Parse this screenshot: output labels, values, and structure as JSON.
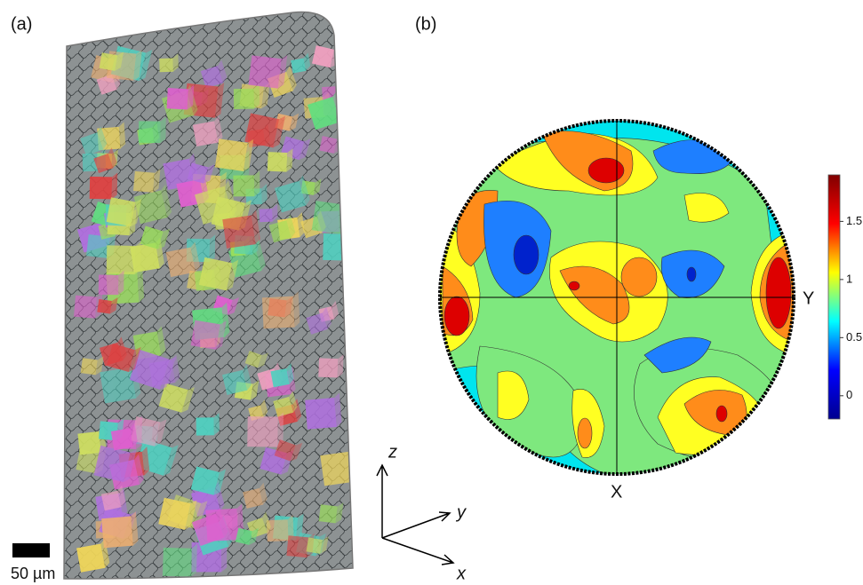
{
  "panel_a": {
    "label": "(a)",
    "scale_bar": "50 µm",
    "axes": {
      "z": "z",
      "y": "y",
      "x": "x"
    }
  },
  "panel_b": {
    "label": "(b)",
    "axis_labels": {
      "x": "X",
      "y": "Y"
    },
    "colorbar": {
      "lim": [
        -0.2,
        1.9
      ],
      "ticks": [
        0,
        0.5,
        1,
        1.5
      ],
      "colormap": "jet"
    }
  }
}
